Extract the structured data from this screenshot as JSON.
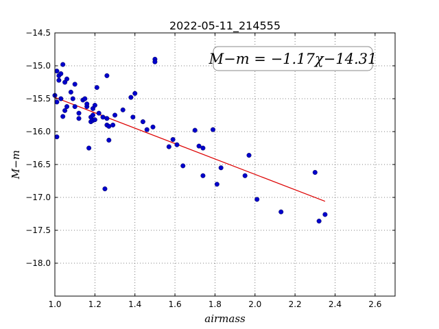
{
  "chart_data": {
    "type": "scatter",
    "title": "2022-05-11_214555",
    "xlabel": "airmass",
    "ylabel": "M−m",
    "xlim": [
      1.0,
      2.7
    ],
    "ylim": [
      -18.5,
      -14.5
    ],
    "y_inverted": true,
    "grid": true,
    "x_ticks": [
      1.0,
      1.2,
      1.4,
      1.6,
      1.8,
      2.0,
      2.2,
      2.4,
      2.6
    ],
    "x_tick_labels": [
      "1.0",
      "1.2",
      "1.4",
      "1.6",
      "1.8",
      "2.0",
      "2.2",
      "2.4",
      "2.6"
    ],
    "y_ticks": [
      -14.5,
      -15.0,
      -15.5,
      -16.0,
      -16.5,
      -17.0,
      -17.5,
      -18.0
    ],
    "y_tick_labels": [
      "−14.5",
      "−15.0",
      "−15.5",
      "−16.0",
      "−16.5",
      "−17.0",
      "−17.5",
      "−18.0"
    ],
    "annotation": "M−m = −1.17χ−14.31",
    "annotation_placement": "top-right",
    "point_color": "#0000cc",
    "fit_color": "#dd0000",
    "fit": {
      "slope": -1.17,
      "intercept": -14.31,
      "x_range": [
        1.0,
        2.35
      ]
    },
    "points": [
      [
        1.0,
        -15.45
      ],
      [
        1.01,
        -15.08
      ],
      [
        1.01,
        -15.55
      ],
      [
        1.01,
        -16.08
      ],
      [
        1.02,
        -15.15
      ],
      [
        1.02,
        -15.22
      ],
      [
        1.03,
        -15.12
      ],
      [
        1.03,
        -15.5
      ],
      [
        1.04,
        -14.98
      ],
      [
        1.04,
        -15.77
      ],
      [
        1.05,
        -15.25
      ],
      [
        1.05,
        -15.68
      ],
      [
        1.06,
        -15.2
      ],
      [
        1.06,
        -15.62
      ],
      [
        1.08,
        -15.4
      ],
      [
        1.09,
        -15.5
      ],
      [
        1.1,
        -15.28
      ],
      [
        1.1,
        -15.62
      ],
      [
        1.12,
        -15.72
      ],
      [
        1.12,
        -15.8
      ],
      [
        1.14,
        -15.52
      ],
      [
        1.15,
        -15.5
      ],
      [
        1.16,
        -15.62
      ],
      [
        1.16,
        -15.58
      ],
      [
        1.17,
        -16.25
      ],
      [
        1.18,
        -15.78
      ],
      [
        1.18,
        -15.85
      ],
      [
        1.19,
        -15.83
      ],
      [
        1.19,
        -15.75
      ],
      [
        1.19,
        -15.65
      ],
      [
        1.2,
        -15.82
      ],
      [
        1.2,
        -15.6
      ],
      [
        1.21,
        -15.33
      ],
      [
        1.22,
        -15.72
      ],
      [
        1.24,
        -15.78
      ],
      [
        1.25,
        -16.87
      ],
      [
        1.26,
        -15.15
      ],
      [
        1.26,
        -15.9
      ],
      [
        1.26,
        -15.8
      ],
      [
        1.27,
        -16.13
      ],
      [
        1.27,
        -15.92
      ],
      [
        1.29,
        -15.9
      ],
      [
        1.3,
        -15.75
      ],
      [
        1.34,
        -15.67
      ],
      [
        1.38,
        -15.48
      ],
      [
        1.39,
        -15.78
      ],
      [
        1.4,
        -15.42
      ],
      [
        1.44,
        -15.85
      ],
      [
        1.46,
        -15.97
      ],
      [
        1.49,
        -15.93
      ],
      [
        1.5,
        -14.9
      ],
      [
        1.5,
        -14.94
      ],
      [
        1.57,
        -16.23
      ],
      [
        1.59,
        -16.12
      ],
      [
        1.61,
        -16.2
      ],
      [
        1.64,
        -16.52
      ],
      [
        1.7,
        -15.98
      ],
      [
        1.72,
        -16.22
      ],
      [
        1.74,
        -16.25
      ],
      [
        1.74,
        -16.67
      ],
      [
        1.79,
        -15.97
      ],
      [
        1.81,
        -16.8
      ],
      [
        1.83,
        -16.55
      ],
      [
        1.95,
        -16.67
      ],
      [
        1.97,
        -16.36
      ],
      [
        2.01,
        -17.03
      ],
      [
        2.13,
        -17.22
      ],
      [
        2.3,
        -16.62
      ],
      [
        2.32,
        -17.36
      ],
      [
        2.35,
        -17.26
      ]
    ]
  }
}
